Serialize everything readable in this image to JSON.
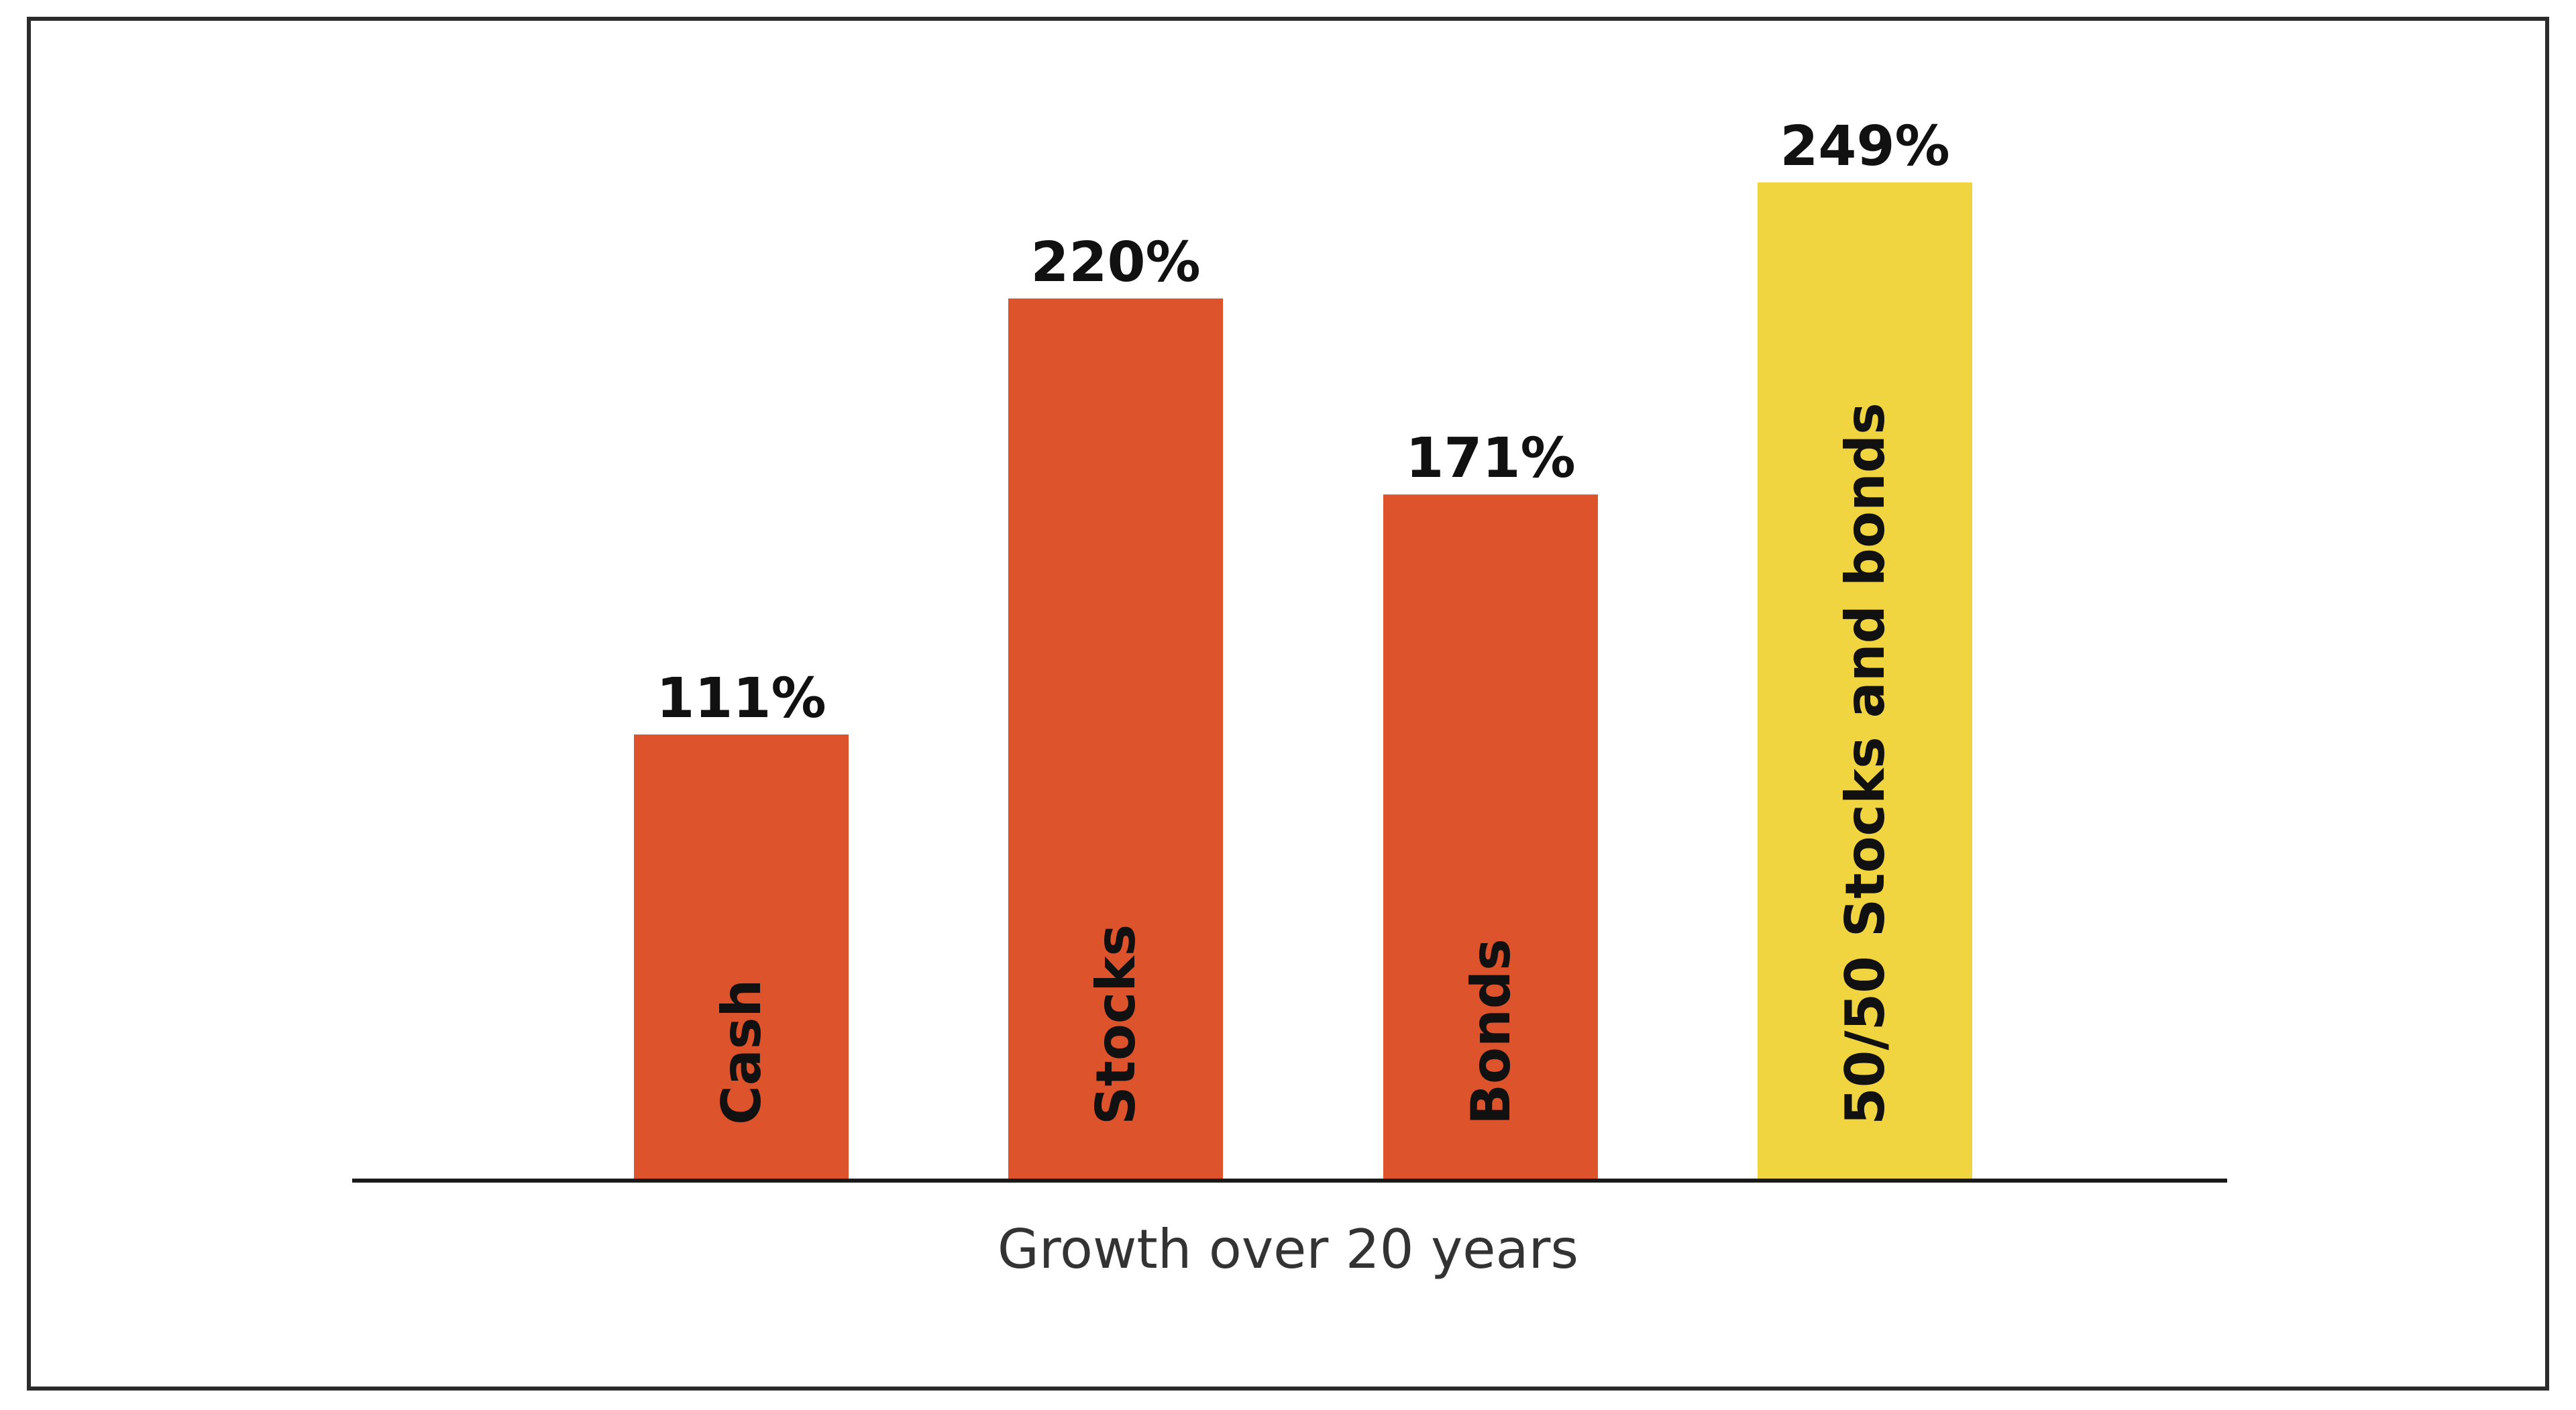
{
  "chart_data": {
    "type": "bar",
    "title": "",
    "xlabel": "Growth over 20 years",
    "ylabel": "",
    "categories": [
      "Cash",
      "Stocks",
      "Bonds",
      "50/50 Stocks and bonds"
    ],
    "values": [
      111,
      220,
      171,
      249
    ],
    "value_labels": [
      "111%",
      "220%",
      "171%",
      "249%"
    ],
    "ylim": [
      0,
      249
    ],
    "bar_colors": [
      "#DC532C",
      "#DC532C",
      "#DC532C",
      "#F0D540"
    ],
    "axis_color": "#1a1a1a",
    "grid": false,
    "legend": "none",
    "label_placement": "inside-bar-vertical"
  }
}
